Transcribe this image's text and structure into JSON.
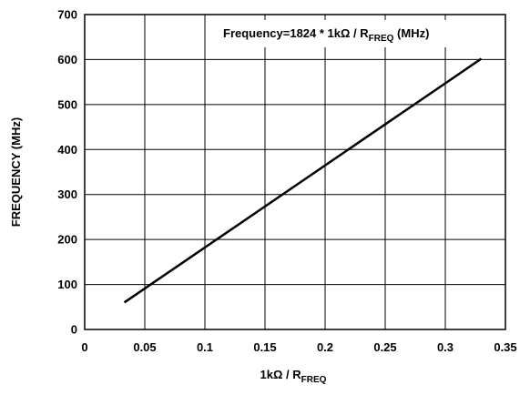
{
  "chart_data": {
    "type": "line",
    "title": "",
    "xlabel": {
      "main": "1kΩ / R",
      "sub": "FREQ"
    },
    "ylabel": "FREQUENCY (MHz)",
    "annotation": {
      "main": "Frequency=1824 * 1kΩ / R",
      "sub": "FREQ",
      "tail": " (MHz)"
    },
    "xlim": [
      0,
      0.35
    ],
    "ylim": [
      0,
      700
    ],
    "xticks": [
      "0",
      "0.05",
      "0.1",
      "0.15",
      "0.2",
      "0.25",
      "0.3",
      "0.35"
    ],
    "yticks": [
      "0",
      "100",
      "200",
      "300",
      "400",
      "500",
      "600",
      "700"
    ],
    "grid": true,
    "series": [
      {
        "x": [
          0.033,
          0.33
        ],
        "y": [
          60,
          602
        ]
      }
    ]
  }
}
